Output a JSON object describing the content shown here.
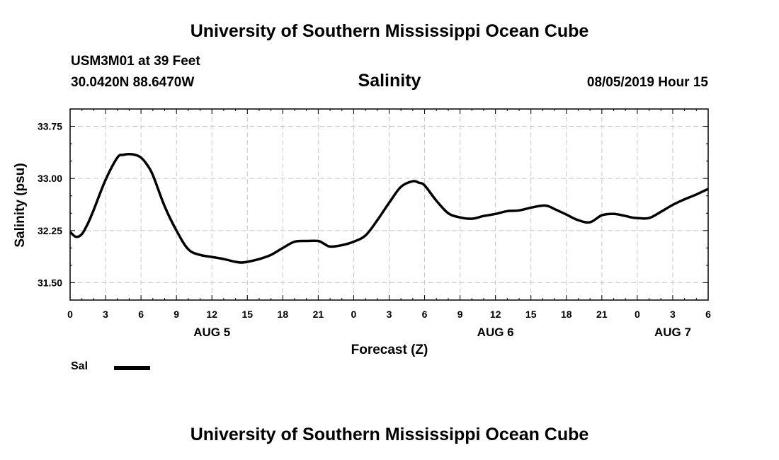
{
  "header": {
    "title": "University of Southern Mississippi Ocean Cube",
    "station": "USM3M01 at 39 Feet",
    "coords": "30.0420N 88.6470W",
    "chart_name": "Salinity",
    "forecast_time": "08/05/2019 Hour 15"
  },
  "footer": {
    "title": "University of Southern Mississippi Ocean Cube"
  },
  "legend": {
    "label": "Sal"
  },
  "colors": {
    "line": "#000000",
    "grid": "#c8c8c8"
  },
  "chart_data": {
    "type": "line",
    "title": "Salinity",
    "xlabel": "Forecast (Z)",
    "ylabel": "Salinity (psu)",
    "xlim": [
      0,
      54
    ],
    "ylim": [
      31.25,
      34.0
    ],
    "x_ticks": [
      0,
      3,
      6,
      9,
      12,
      15,
      18,
      21,
      24,
      27,
      30,
      33,
      36,
      39,
      42,
      45,
      48,
      51,
      54
    ],
    "x_tick_labels": [
      "0",
      "3",
      "6",
      "9",
      "12",
      "15",
      "18",
      "21",
      "0",
      "3",
      "6",
      "9",
      "12",
      "15",
      "18",
      "21",
      "0",
      "3",
      "6"
    ],
    "y_ticks": [
      31.5,
      32.25,
      33.0,
      33.75
    ],
    "y_tick_labels": [
      "31.50",
      "32.25",
      "33.00",
      "33.75"
    ],
    "date_labels": [
      {
        "text": "AUG 5",
        "x": 12
      },
      {
        "text": "AUG 6",
        "x": 36
      },
      {
        "text": "AUG 7",
        "x": 51
      }
    ],
    "grid": true,
    "series": [
      {
        "name": "Sal",
        "x": [
          0,
          0.5,
          1,
          1.5,
          2,
          3,
          4,
          4.5,
          5,
          5.5,
          6,
          6.5,
          7,
          8,
          9,
          10,
          11,
          12,
          13,
          14,
          14.5,
          15,
          16,
          17,
          18,
          19,
          20,
          21,
          21.5,
          22,
          23,
          24,
          25,
          26,
          27,
          28,
          29,
          29.5,
          30,
          31,
          32,
          33,
          34,
          35,
          36,
          37,
          38,
          39,
          40,
          40.5,
          41,
          42,
          43,
          44,
          45,
          46,
          47,
          47.5,
          48,
          49,
          50,
          51,
          52,
          53,
          54
        ],
        "y": [
          32.23,
          32.16,
          32.2,
          32.35,
          32.55,
          32.98,
          33.3,
          33.34,
          33.35,
          33.34,
          33.3,
          33.2,
          33.05,
          32.6,
          32.25,
          31.98,
          31.9,
          31.87,
          31.84,
          31.8,
          31.79,
          31.8,
          31.84,
          31.9,
          32.0,
          32.09,
          32.1,
          32.1,
          32.06,
          32.02,
          32.04,
          32.09,
          32.18,
          32.4,
          32.65,
          32.88,
          32.96,
          32.94,
          32.9,
          32.68,
          32.5,
          32.44,
          32.42,
          32.46,
          32.49,
          32.53,
          32.54,
          32.58,
          32.61,
          32.6,
          32.56,
          32.48,
          32.4,
          32.37,
          32.47,
          32.49,
          32.46,
          32.44,
          32.43,
          32.43,
          32.52,
          32.62,
          32.7,
          32.77,
          32.85
        ]
      }
    ]
  }
}
